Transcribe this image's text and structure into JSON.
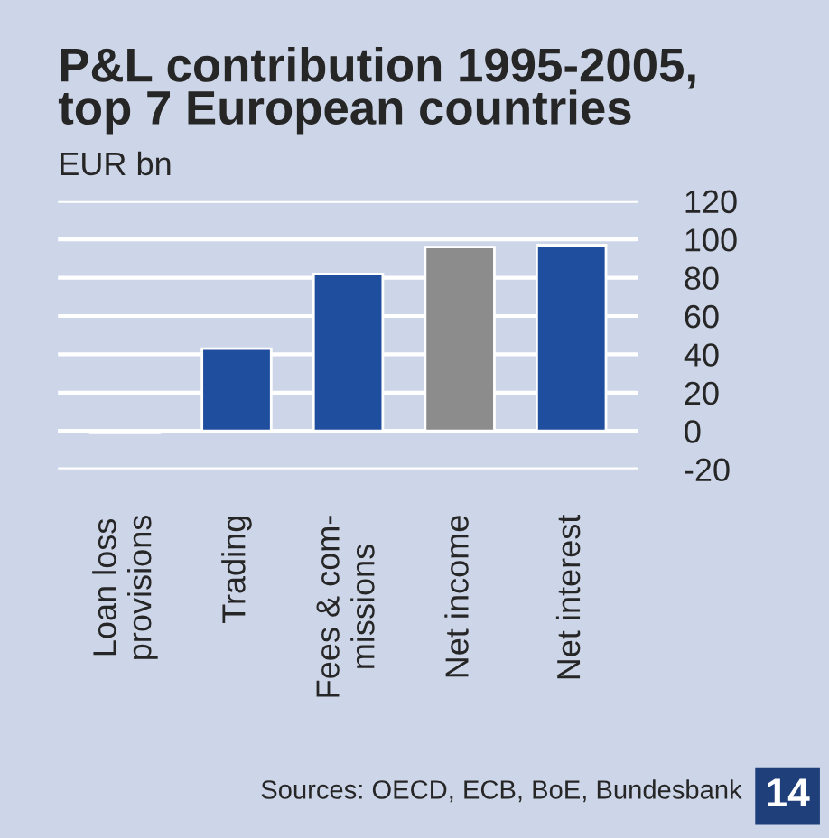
{
  "chart_data": {
    "type": "bar",
    "title": "P&L contribution 1995-2005,\ntop 7 European countries",
    "ylabel": "EUR bn",
    "categories": [
      "Loan loss\nprovisions",
      "Trading",
      "Fees & com-\nmissions",
      "Net income",
      "Net interest"
    ],
    "values": [
      -1,
      43,
      82,
      96,
      97
    ],
    "colors": [
      "#1f4e9e",
      "#1f4e9e",
      "#1f4e9e",
      "#8c8c8c",
      "#1f4e9e"
    ],
    "ylim": [
      -20,
      120
    ],
    "yticks": [
      -20,
      0,
      20,
      40,
      60,
      80,
      100,
      120
    ],
    "grid": "y",
    "annotations": [
      "Sources: OECD, ECB, BoE, Bundesbank",
      "14"
    ]
  }
}
